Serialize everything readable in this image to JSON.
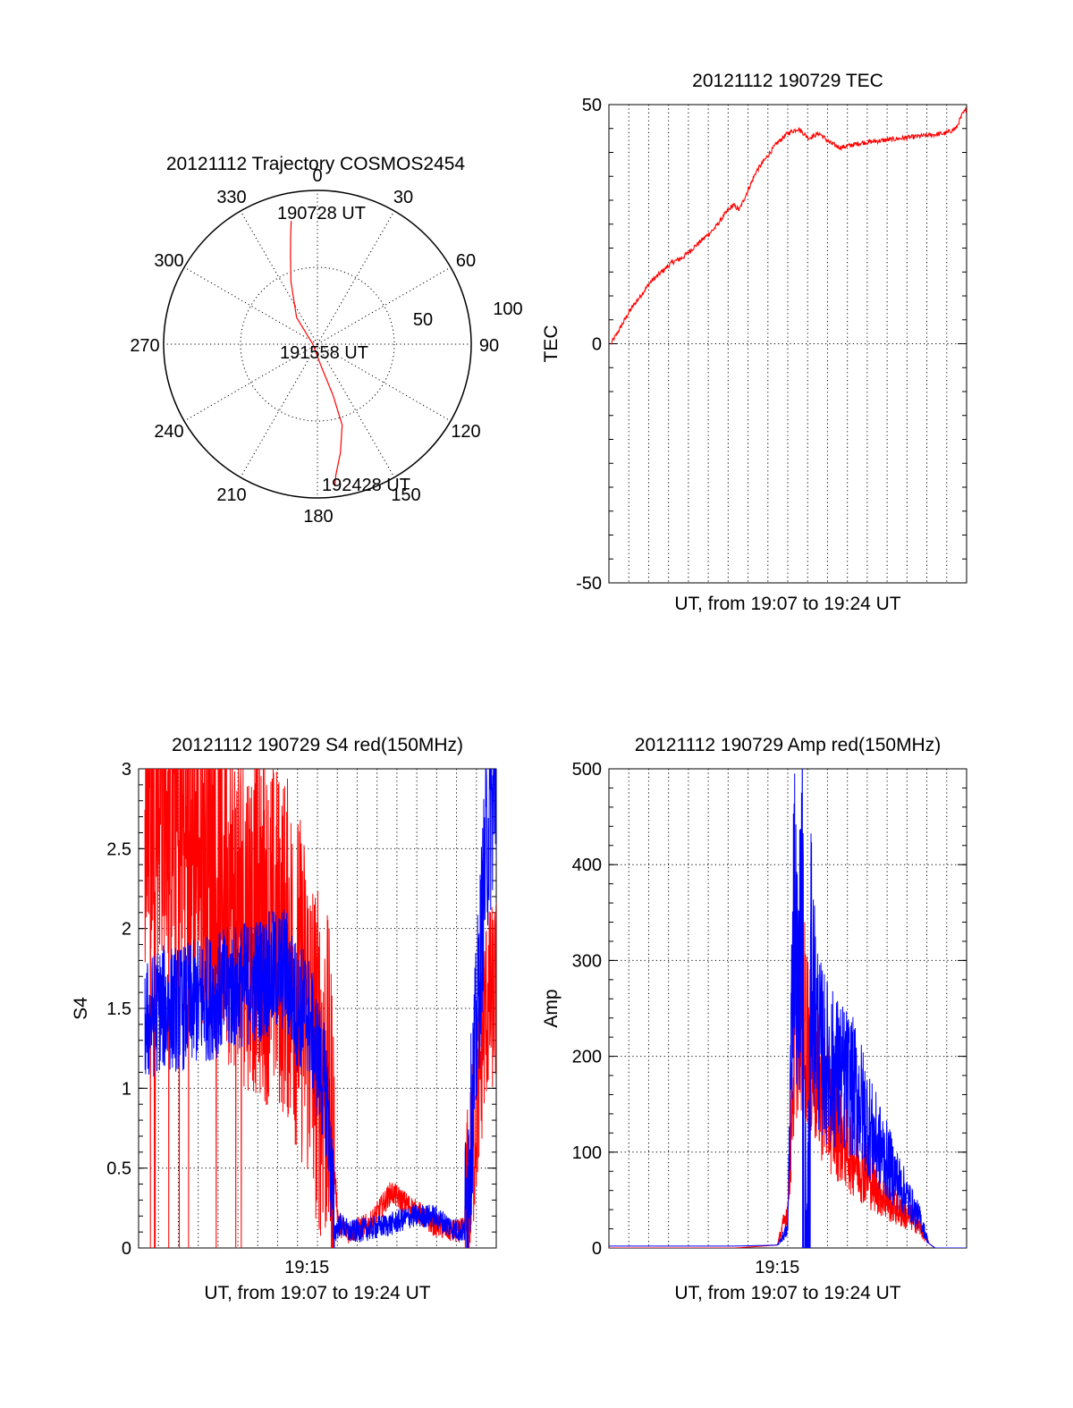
{
  "figure": {
    "red_color": "#ff0000",
    "blue_color": "#0000ff"
  },
  "chart_data": [
    {
      "type": "polar",
      "title": "20121112 Trajectory COSMOS2454",
      "angle_labels": [
        "0",
        "30",
        "60",
        "90",
        "120",
        "150",
        "180",
        "210",
        "240",
        "270",
        "300",
        "330"
      ],
      "radius_labels": [
        "50",
        "100"
      ],
      "r_max": 100,
      "annotations": [
        "190728 UT",
        "191558 UT",
        "192428 UT"
      ],
      "series": [
        {
          "color": "#ff0000",
          "points_deg_r": [
            [
              -12,
              82
            ],
            [
              -14,
              72
            ],
            [
              -17,
              60
            ],
            [
              -23,
              44
            ],
            [
              -38,
              22
            ],
            [
              -90,
              3
            ],
            [
              170,
              15
            ],
            [
              163,
              35
            ],
            [
              163,
              55
            ],
            [
              168,
              72
            ],
            [
              172,
              86
            ],
            [
              173,
              93
            ]
          ]
        }
      ]
    },
    {
      "type": "line",
      "title": "20121112 190729 TEC",
      "ylabel": "TEC",
      "xlabel": "UT, from 19:07 to 19:24 UT",
      "ylim": [
        -50,
        50
      ],
      "y_ticks": [
        "-50",
        "0",
        "50"
      ],
      "x_range_min": [
        0,
        17
      ],
      "x_grid_count": 18,
      "series": [
        {
          "color": "#ff0000",
          "x_min": [
            0.1,
            0.5,
            1.0,
            1.5,
            2.0,
            2.5,
            3.0,
            3.5,
            4.0,
            4.5,
            5.0,
            5.5,
            5.9,
            6.2,
            6.5,
            7.0,
            7.5,
            8.0,
            8.5,
            9.0,
            9.5,
            10.0,
            10.5,
            11,
            12,
            13,
            14,
            15,
            16,
            16.5,
            16.8,
            17.0
          ],
          "y": [
            0,
            3,
            7,
            10,
            13,
            15,
            17,
            18,
            20,
            22,
            24,
            27,
            29,
            28,
            31,
            36,
            39,
            42,
            44,
            45,
            43,
            44,
            42,
            41,
            42,
            42.5,
            43,
            43.5,
            44,
            45,
            48,
            49
          ]
        }
      ]
    },
    {
      "type": "line",
      "title": "20121112 190729 S4 red(150MHz)",
      "ylabel": "S4",
      "xlabel": "UT, from 19:07 to 19:24 UT",
      "ylim": [
        0,
        3
      ],
      "y_ticks": [
        "0",
        "0.5",
        "1",
        "1.5",
        "2",
        "2.5",
        "3"
      ],
      "x_tick_labels": [
        "19:15"
      ],
      "x_range_min": [
        0,
        17
      ],
      "x_grid_count": 18,
      "series": [
        {
          "color": "#ff0000",
          "x_min": [
            0.3,
            1.0,
            2.0,
            3.0,
            4.0,
            5.0,
            6.0,
            7.0,
            8.0,
            8.5,
            9.0,
            9.5,
            10.0,
            11.0,
            11.5,
            12.0,
            12.5,
            13.0,
            14.0,
            15.0,
            15.5,
            16.0,
            16.5,
            17.0
          ],
          "y": [
            2.8,
            2.9,
            2.6,
            2.5,
            2.3,
            2.1,
            2.0,
            1.9,
            1.5,
            1.2,
            1.0,
            0.15,
            0.1,
            0.15,
            0.25,
            0.35,
            0.3,
            0.25,
            0.15,
            0.1,
            0.12,
            0.8,
            1.5,
            1.6
          ]
        },
        {
          "color": "#0000ff",
          "x_min": [
            0.3,
            1.0,
            2.0,
            3.0,
            4.0,
            5.0,
            6.0,
            7.0,
            7.5,
            8.0,
            8.5,
            9.0,
            9.3,
            9.6,
            10.0,
            11.0,
            12.0,
            13.0,
            14.0,
            15.0,
            15.5,
            16.0,
            16.5,
            17.0
          ],
          "y": [
            1.4,
            1.5,
            1.5,
            1.55,
            1.6,
            1.65,
            1.7,
            1.75,
            1.5,
            1.5,
            1.2,
            0.9,
            0.1,
            0.15,
            0.1,
            0.12,
            0.15,
            0.2,
            0.2,
            0.12,
            0.1,
            1.2,
            2.5,
            2.9
          ]
        }
      ]
    },
    {
      "type": "line",
      "title": "20121112 190729 Amp red(150MHz)",
      "ylabel": "Amp",
      "xlabel": "UT, from 19:07 to 19:24 UT",
      "ylim": [
        0,
        500
      ],
      "y_ticks": [
        "0",
        "100",
        "200",
        "300",
        "400",
        "500"
      ],
      "x_tick_labels": [
        "19:15"
      ],
      "x_range_min": [
        0,
        17
      ],
      "x_grid_count": 18,
      "series": [
        {
          "color": "#ff0000",
          "x_min": [
            0,
            3,
            6,
            8.0,
            8.5,
            8.8,
            9.0,
            9.3,
            9.6,
            10.0,
            10.5,
            11.0,
            11.5,
            12.0,
            12.5,
            13.0,
            13.5,
            14.0,
            14.5,
            14.8,
            15.2,
            15.5,
            17.0
          ],
          "y": [
            0,
            0,
            0,
            3,
            40,
            200,
            260,
            240,
            200,
            170,
            140,
            120,
            100,
            85,
            70,
            55,
            45,
            35,
            30,
            20,
            5,
            0,
            0
          ]
        },
        {
          "color": "#0000ff",
          "x_min": [
            0,
            3,
            6,
            8.0,
            8.5,
            8.8,
            9.0,
            9.2,
            9.4,
            9.6,
            9.8,
            10.0,
            10.5,
            11.0,
            11.5,
            12.0,
            12.5,
            13.0,
            13.5,
            14.0,
            14.5,
            14.8,
            15.2,
            15.5,
            17.0
          ],
          "y": [
            2,
            2,
            2,
            3,
            20,
            380,
            250,
            420,
            5,
            300,
            250,
            210,
            190,
            180,
            170,
            150,
            120,
            100,
            80,
            60,
            40,
            30,
            5,
            0,
            0
          ]
        }
      ]
    }
  ]
}
